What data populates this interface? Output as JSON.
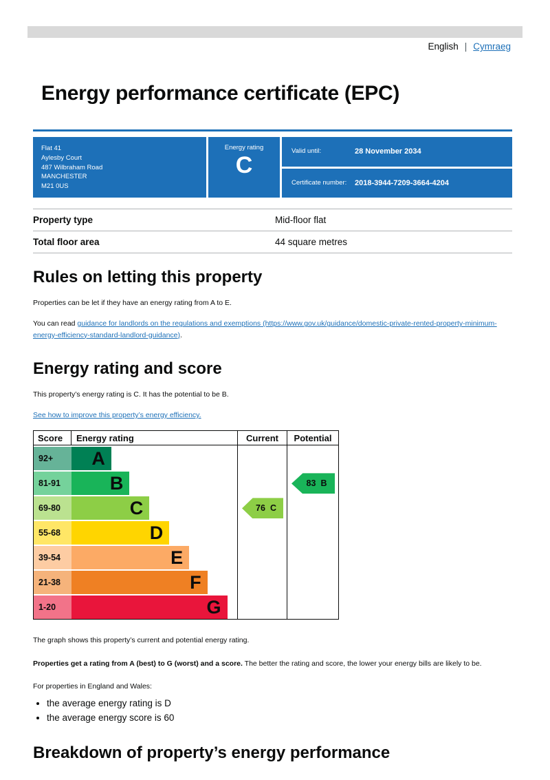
{
  "language_bar": {
    "english": "English",
    "separator": "|",
    "cymraeg": "Cymraeg"
  },
  "title": "Energy performance certificate (EPC)",
  "summary": {
    "address_lines": [
      "Flat 41",
      "Aylesby Court",
      "487 Wilbraham Road",
      "MANCHESTER",
      "M21 0US"
    ],
    "energy_rating_label": "Energy rating",
    "energy_rating": "C",
    "valid_until_label": "Valid until:",
    "valid_until_value": "28 November 2034",
    "certificate_number_label": "Certificate number:",
    "certificate_number_value": "2018-3944-7209-3664-4204"
  },
  "property_details": {
    "rows": [
      {
        "label": "Property type",
        "value": "Mid-floor flat"
      },
      {
        "label": "Total floor area",
        "value": "44 square metres"
      }
    ]
  },
  "rules_section": {
    "heading": "Rules on letting this property",
    "para1": "Properties can be let if they have an energy rating from A to E.",
    "para2_prefix": "You can read ",
    "para2_link": "guidance for landlords on the regulations and exemptions (https://www.gov.uk/guidance/domestic-private-rented-property-minimum-energy-efficiency-standard-landlord-guidance)",
    "para2_suffix": "."
  },
  "rating_section": {
    "heading": "Energy rating and score",
    "para1": "This property’s energy rating is C. It has the potential to be B.",
    "improve_link": "See how to improve this property’s energy efficiency."
  },
  "chart_data": {
    "type": "bar",
    "title": "Energy rating and score",
    "columns": [
      "Score",
      "Energy rating",
      "Current",
      "Potential"
    ],
    "bands": [
      {
        "score_range": "92+",
        "letter": "A",
        "color": "#008054",
        "width_pct": 24
      },
      {
        "score_range": "81-91",
        "letter": "B",
        "color": "#19b459",
        "width_pct": 35
      },
      {
        "score_range": "69-80",
        "letter": "C",
        "color": "#8dce46",
        "width_pct": 47
      },
      {
        "score_range": "55-68",
        "letter": "D",
        "color": "#ffd500",
        "width_pct": 59
      },
      {
        "score_range": "39-54",
        "letter": "E",
        "color": "#fcaa65",
        "width_pct": 71
      },
      {
        "score_range": "21-38",
        "letter": "F",
        "color": "#ef8023",
        "width_pct": 82
      },
      {
        "score_range": "1-20",
        "letter": "G",
        "color": "#e9153b",
        "width_pct": 94
      }
    ],
    "current": {
      "value": 76,
      "letter": "C",
      "band_index": 2,
      "color": "#8dce46"
    },
    "potential": {
      "value": 83,
      "letter": "B",
      "band_index": 1,
      "color": "#19b459"
    }
  },
  "notes": {
    "graph_caption": "The graph shows this property’s current and potential energy rating.",
    "ratings_bold": "Properties get a rating from A (best) to G (worst) and a score.",
    "ratings_rest": " The better the rating and score, the lower your energy bills are likely to be.",
    "averages_intro": "For properties in England and Wales:",
    "bullets": [
      "the average energy rating is D",
      "the average energy score is 60"
    ]
  },
  "breakdown_section": {
    "heading": "Breakdown of property’s energy performance"
  },
  "colors": {
    "govuk_blue": "#1d70b8",
    "link_blue": "#1d70b8",
    "text_black": "#0b0c0c",
    "divider_grey": "#b1b4b6",
    "top_bar_grey": "#d9d9d9"
  }
}
